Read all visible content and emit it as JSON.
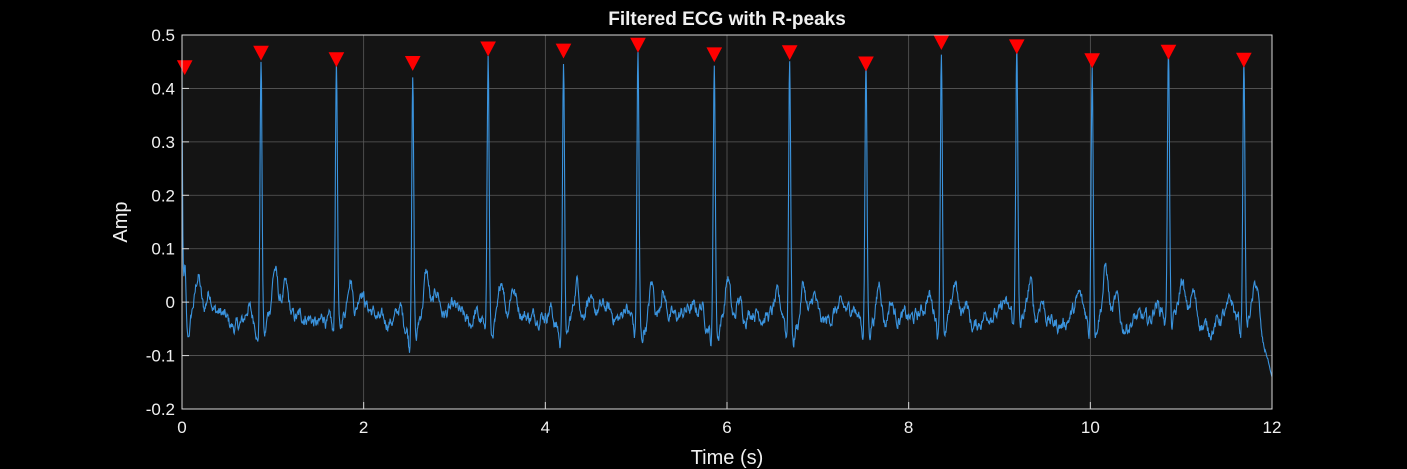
{
  "chart_data": {
    "type": "line",
    "title": "Filtered ECG with R-peaks",
    "xlabel": "Time (s)",
    "ylabel": "Amp",
    "xlim": [
      0,
      12
    ],
    "ylim": [
      -0.2,
      0.5
    ],
    "xticks": [
      0,
      2,
      4,
      6,
      8,
      10,
      12
    ],
    "xtick_labels": [
      "0",
      "2",
      "4",
      "6",
      "8",
      "10",
      "12"
    ],
    "yticks": [
      -0.2,
      -0.1,
      0,
      0.1,
      0.2,
      0.3,
      0.4,
      0.5
    ],
    "ytick_labels": [
      "-0.2",
      "-0.1",
      "0",
      "0.1",
      "0.2",
      "0.3",
      "0.4",
      "0.5"
    ],
    "grid": true,
    "background": "#141414",
    "series": [
      {
        "name": "",
        "kind": "line",
        "color": "#3a93dd",
        "waveform": "ecg",
        "start_value": 0.43,
        "end_value": -0.14,
        "baseline": -0.03
      },
      {
        "name": "",
        "kind": "marker",
        "marker": "triangle-down",
        "color": "#ff0000",
        "x": [
          0.03,
          0.87,
          1.7,
          2.54,
          3.37,
          4.2,
          5.02,
          5.86,
          6.69,
          7.53,
          8.36,
          9.19,
          10.02,
          10.86,
          11.69
        ],
        "y": [
          0.435,
          0.462,
          0.45,
          0.443,
          0.47,
          0.466,
          0.477,
          0.459,
          0.463,
          0.442,
          0.482,
          0.474,
          0.448,
          0.464,
          0.449
        ]
      }
    ]
  }
}
